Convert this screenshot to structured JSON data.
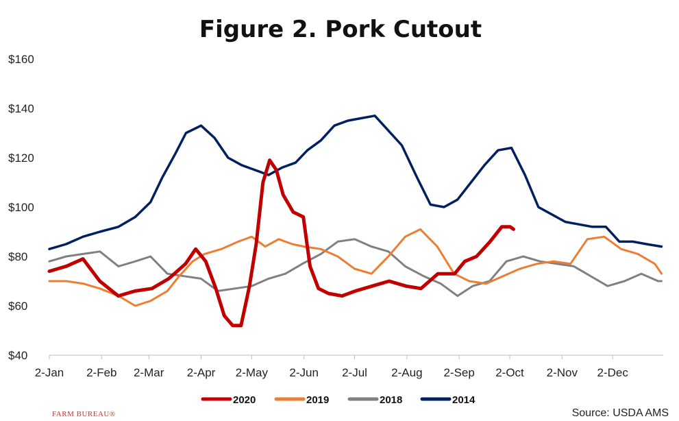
{
  "chart_data": {
    "type": "line",
    "title": "Figure 2. Pork Cutout",
    "xlabel": "",
    "ylabel": "",
    "ylim": [
      40,
      160
    ],
    "y_ticks": [
      "$40",
      "$60",
      "$80",
      "$100",
      "$120",
      "$140",
      "$160"
    ],
    "x_ticks": [
      "2-Jan",
      "2-Feb",
      "2-Mar",
      "2-Apr",
      "2-May",
      "2-Jun",
      "2-Jul",
      "2-Aug",
      "2-Sep",
      "2-Oct",
      "2-Nov",
      "2-Dec"
    ],
    "legend_position": "bottom",
    "series": [
      {
        "name": "2020",
        "color": "#c00000",
        "x": [
          "2020-01-02",
          "2020-01-12",
          "2020-01-22",
          "2020-02-01",
          "2020-02-12",
          "2020-02-22",
          "2020-03-03",
          "2020-03-13",
          "2020-03-23",
          "2020-03-29",
          "2020-04-04",
          "2020-04-10",
          "2020-04-15",
          "2020-04-20",
          "2020-04-25",
          "2020-04-30",
          "2020-05-04",
          "2020-05-08",
          "2020-05-12",
          "2020-05-16",
          "2020-05-20",
          "2020-05-26",
          "2020-06-01",
          "2020-06-05",
          "2020-06-10",
          "2020-06-16",
          "2020-06-24",
          "2020-07-02",
          "2020-07-12",
          "2020-07-22",
          "2020-08-01",
          "2020-08-10",
          "2020-08-20",
          "2020-08-30",
          "2020-09-05",
          "2020-09-12",
          "2020-09-20",
          "2020-09-27",
          "2020-10-02",
          "2020-10-04"
        ],
        "values": [
          74,
          76,
          79,
          70,
          64,
          66,
          67,
          71,
          77,
          83,
          78,
          67,
          56,
          52,
          52,
          68,
          85,
          110,
          119,
          115,
          105,
          98,
          96,
          76,
          67,
          65,
          64,
          66,
          68,
          70,
          68,
          67,
          73,
          73,
          78,
          80,
          86,
          92,
          92,
          91
        ]
      },
      {
        "name": "2019",
        "color": "#ed7d31",
        "x": [
          "2019-01-02",
          "2019-01-12",
          "2019-01-22",
          "2019-02-01",
          "2019-02-12",
          "2019-02-22",
          "2019-03-03",
          "2019-03-13",
          "2019-03-20",
          "2019-03-28",
          "2019-04-04",
          "2019-04-14",
          "2019-04-24",
          "2019-05-02",
          "2019-05-10",
          "2019-05-18",
          "2019-05-26",
          "2019-06-02",
          "2019-06-12",
          "2019-06-22",
          "2019-07-02",
          "2019-07-12",
          "2019-07-22",
          "2019-08-01",
          "2019-08-10",
          "2019-08-20",
          "2019-08-30",
          "2019-09-08",
          "2019-09-18",
          "2019-09-28",
          "2019-10-08",
          "2019-10-18",
          "2019-10-28",
          "2019-11-07",
          "2019-11-17",
          "2019-11-27",
          "2019-12-07",
          "2019-12-17",
          "2019-12-27",
          "2019-12-31"
        ],
        "values": [
          70,
          70,
          69,
          67,
          64,
          60,
          62,
          66,
          72,
          78,
          81,
          83,
          86,
          88,
          84,
          87,
          85,
          84,
          83,
          80,
          75,
          73,
          80,
          88,
          91,
          84,
          73,
          70,
          69,
          72,
          75,
          77,
          78,
          77,
          87,
          88,
          83,
          81,
          77,
          73
        ]
      },
      {
        "name": "2018",
        "color": "#808080",
        "x": [
          "2018-01-02",
          "2018-01-12",
          "2018-01-22",
          "2018-02-01",
          "2018-02-12",
          "2018-02-22",
          "2018-03-03",
          "2018-03-13",
          "2018-03-23",
          "2018-04-02",
          "2018-04-12",
          "2018-04-22",
          "2018-05-02",
          "2018-05-12",
          "2018-05-22",
          "2018-06-01",
          "2018-06-12",
          "2018-06-22",
          "2018-07-02",
          "2018-07-12",
          "2018-07-22",
          "2018-08-01",
          "2018-08-12",
          "2018-08-22",
          "2018-09-01",
          "2018-09-10",
          "2018-09-20",
          "2018-09-30",
          "2018-10-10",
          "2018-10-20",
          "2018-10-30",
          "2018-11-09",
          "2018-11-19",
          "2018-11-29",
          "2018-12-09",
          "2018-12-19",
          "2018-12-29",
          "2018-12-31"
        ],
        "values": [
          78,
          80,
          81,
          82,
          76,
          78,
          80,
          73,
          72,
          71,
          66,
          67,
          68,
          71,
          73,
          77,
          81,
          86,
          87,
          84,
          82,
          76,
          72,
          69,
          64,
          68,
          70,
          78,
          80,
          78,
          77,
          76,
          72,
          68,
          70,
          73,
          70,
          70
        ]
      },
      {
        "name": "2014",
        "color": "#002060",
        "x": [
          "2014-01-02",
          "2014-01-12",
          "2014-01-22",
          "2014-02-01",
          "2014-02-12",
          "2014-02-22",
          "2014-03-03",
          "2014-03-10",
          "2014-03-18",
          "2014-03-24",
          "2014-04-02",
          "2014-04-10",
          "2014-04-18",
          "2014-04-26",
          "2014-05-04",
          "2014-05-12",
          "2014-05-20",
          "2014-05-28",
          "2014-06-04",
          "2014-06-12",
          "2014-06-20",
          "2014-06-28",
          "2014-07-06",
          "2014-07-14",
          "2014-07-22",
          "2014-07-30",
          "2014-08-08",
          "2014-08-16",
          "2014-08-24",
          "2014-09-01",
          "2014-09-09",
          "2014-09-17",
          "2014-09-25",
          "2014-10-03",
          "2014-10-11",
          "2014-10-19",
          "2014-10-27",
          "2014-11-04",
          "2014-11-12",
          "2014-11-20",
          "2014-11-28",
          "2014-12-06",
          "2014-12-14",
          "2014-12-22",
          "2014-12-31"
        ],
        "values": [
          83,
          85,
          88,
          90,
          92,
          96,
          102,
          112,
          122,
          130,
          133,
          128,
          120,
          117,
          115,
          113,
          116,
          118,
          123,
          127,
          133,
          135,
          136,
          137,
          131,
          125,
          112,
          101,
          100,
          103,
          110,
          117,
          123,
          124,
          113,
          100,
          97,
          94,
          93,
          92,
          92,
          86,
          86,
          85,
          84
        ]
      }
    ],
    "source": "Source: USDA AMS",
    "brand": "FARM BUREAU®"
  }
}
